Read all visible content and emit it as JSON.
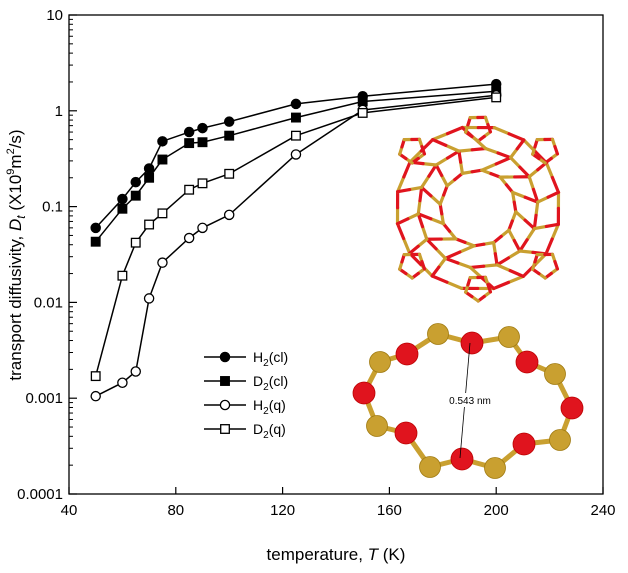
{
  "chart_data": {
    "type": "line",
    "title": "",
    "xlabel": "temperature, T (K)",
    "xlabel_parts": {
      "prefix": "temperature, ",
      "var": "T",
      "suffix": " (K)"
    },
    "ylabel": "transport diffusivity, Dt (X10⁹m²/s)",
    "ylabel_parts": {
      "prefix": "transport diffusivity, ",
      "var": "D",
      "sub": "t",
      "mid": " (X10",
      "sup1": "9",
      "mid2": "m",
      "sup2": "2",
      "end": "/s)"
    },
    "xlim": [
      40,
      240
    ],
    "ylim": [
      0.0001,
      10
    ],
    "yscale": "log",
    "grid": false,
    "legend_position": "center",
    "xticks": [
      {
        "value": 40,
        "label": "40"
      },
      {
        "value": 80,
        "label": "80"
      },
      {
        "value": 120,
        "label": "120"
      },
      {
        "value": 160,
        "label": "160"
      },
      {
        "value": 200,
        "label": "200"
      },
      {
        "value": 240,
        "label": "240"
      }
    ],
    "yticks": [
      {
        "value": 0.0001,
        "label": "0.0001"
      },
      {
        "value": 0.001,
        "label": "0.001"
      },
      {
        "value": 0.01,
        "label": "0.01"
      },
      {
        "value": 0.1,
        "label": "0.1"
      },
      {
        "value": 1,
        "label": "1"
      },
      {
        "value": 10,
        "label": "10"
      }
    ],
    "series": [
      {
        "name": "H2(cl)",
        "legend": {
          "base": "H",
          "sub": "2",
          "tail": "(cl)"
        },
        "marker": "circle",
        "filled": true,
        "x": [
          50,
          60,
          65,
          70,
          75,
          85,
          90,
          100,
          125,
          150,
          200
        ],
        "y": [
          0.06,
          0.12,
          0.18,
          0.25,
          0.48,
          0.6,
          0.66,
          0.77,
          1.18,
          1.42,
          1.9
        ]
      },
      {
        "name": "D2(cl)",
        "legend": {
          "base": "D",
          "sub": "2",
          "tail": "(cl)"
        },
        "marker": "square",
        "filled": true,
        "x": [
          50,
          60,
          65,
          70,
          75,
          85,
          90,
          100,
          125,
          150,
          200
        ],
        "y": [
          0.043,
          0.095,
          0.13,
          0.2,
          0.31,
          0.46,
          0.47,
          0.55,
          0.85,
          1.25,
          1.6
        ]
      },
      {
        "name": "H2(q)",
        "legend": {
          "base": "H",
          "sub": "2",
          "tail": "(q)"
        },
        "marker": "circle",
        "filled": false,
        "x": [
          50,
          60,
          65,
          70,
          75,
          85,
          90,
          100,
          125,
          150,
          200
        ],
        "y": [
          0.00105,
          0.00145,
          0.0019,
          0.011,
          0.026,
          0.047,
          0.06,
          0.082,
          0.35,
          1.02,
          1.45
        ]
      },
      {
        "name": "D2(q)",
        "legend": {
          "base": "D",
          "sub": "2",
          "tail": "(q)"
        },
        "marker": "square",
        "filled": false,
        "x": [
          50,
          60,
          65,
          70,
          75,
          85,
          90,
          100,
          125,
          150,
          200
        ],
        "y": [
          0.0017,
          0.019,
          0.042,
          0.065,
          0.085,
          0.15,
          0.175,
          0.22,
          0.55,
          0.95,
          1.38
        ]
      }
    ],
    "annotations": [
      {
        "text": "0.543 nm"
      }
    ],
    "colors": {
      "line": "#000000",
      "oxygen_atom": "#e0141e",
      "silicon_atom": "#c9a030"
    }
  }
}
